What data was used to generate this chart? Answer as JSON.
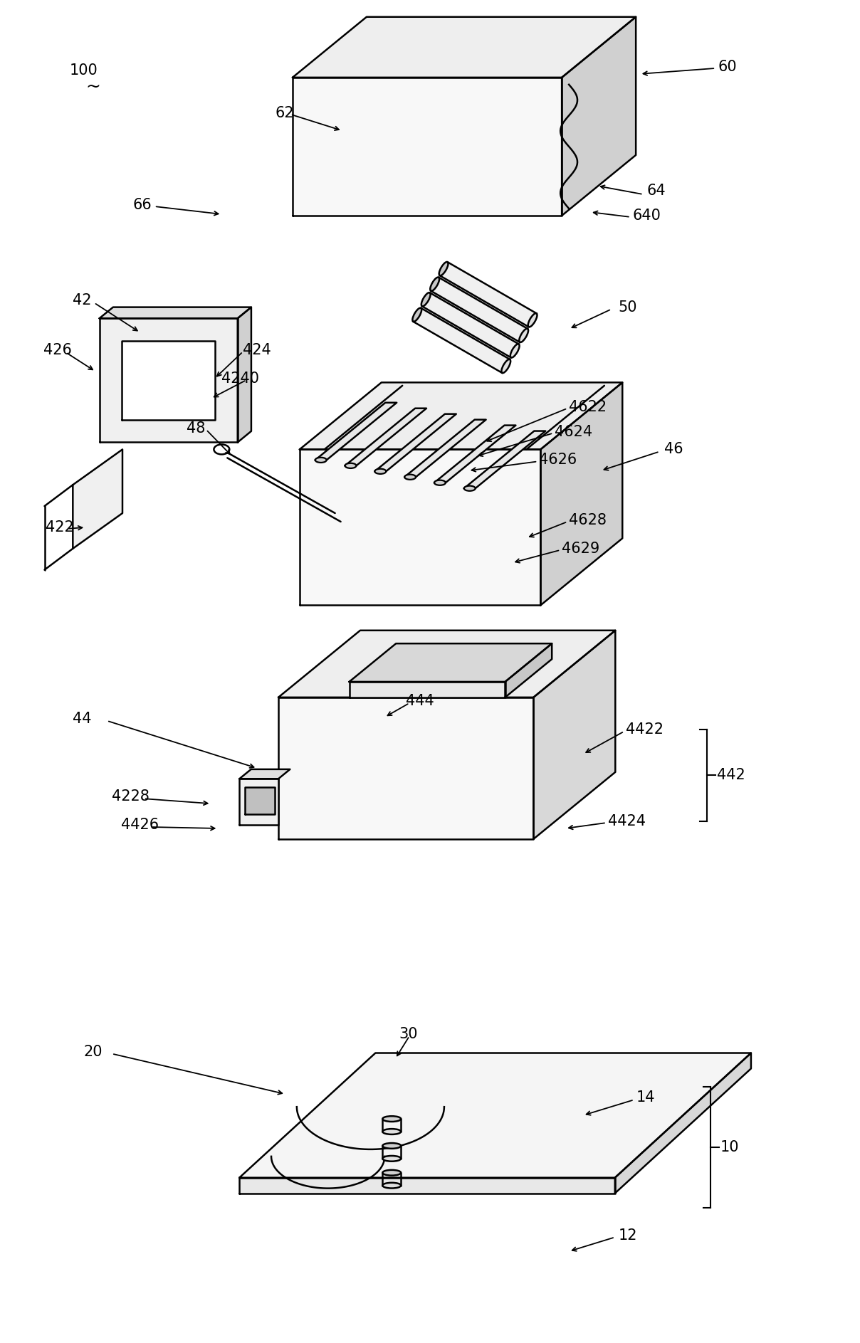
{
  "bg_color": "#ffffff",
  "line_color": "#000000",
  "lw": 1.8,
  "fig_width": 12.08,
  "fig_height": 18.87,
  "dpi": 100
}
